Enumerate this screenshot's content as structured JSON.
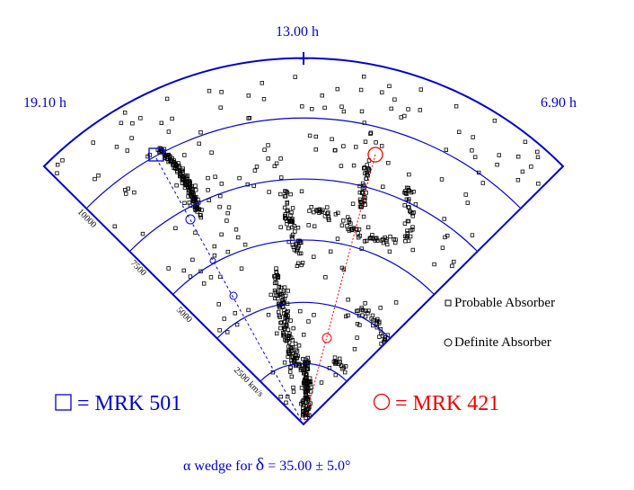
{
  "labels": {
    "top_ra": "13.00 h",
    "left_ra": "19.10 h",
    "right_ra": "6.90 h",
    "ring_10000": "10000",
    "ring_7500": "7500",
    "ring_5000": "5000",
    "ring_2500": "2500 km/s"
  },
  "legend": {
    "probable": "Probable Absorber",
    "definite": "Definite Absorber"
  },
  "targets": {
    "mrk501": "= MRK 501",
    "mrk421": "= MRK 421"
  },
  "caption": {
    "prefix": "α wedge for ",
    "delta": "δ",
    "suffix": " =  35.00 ± 5.0°"
  },
  "colors": {
    "wedge": "#0000cc",
    "mrk501": "#0000cc",
    "mrk421": "#ee0000",
    "galaxy": "#000000"
  }
}
